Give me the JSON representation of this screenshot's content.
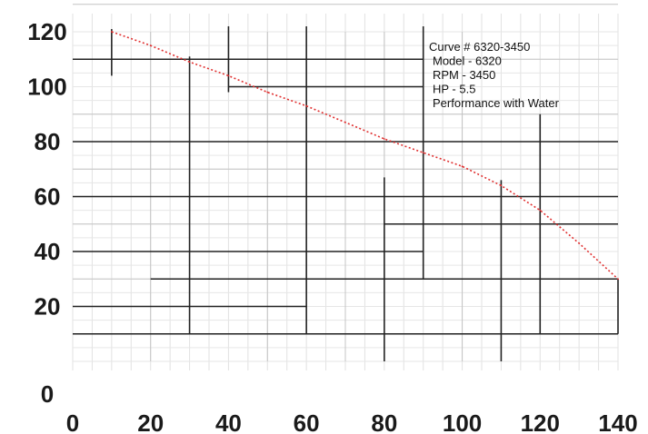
{
  "chart_data": {
    "type": "line",
    "title": "",
    "xlabel": "",
    "ylabel": "",
    "xlim": [
      0,
      140
    ],
    "ylim": [
      0,
      120
    ],
    "x_ticks": [
      "0",
      "20",
      "40",
      "60",
      "80",
      "100",
      "120",
      "140"
    ],
    "y_ticks": [
      "0",
      "20",
      "40",
      "60",
      "80",
      "100",
      "120"
    ],
    "grid": true,
    "series": [
      {
        "color": "#e03030",
        "style": "dotted",
        "points": [
          {
            "x": 10,
            "y": 120
          },
          {
            "x": 20,
            "y": 115
          },
          {
            "x": 30,
            "y": 109
          },
          {
            "x": 40,
            "y": 104
          },
          {
            "x": 50,
            "y": 98
          },
          {
            "x": 60,
            "y": 93
          },
          {
            "x": 70,
            "y": 87
          },
          {
            "x": 80,
            "y": 81
          },
          {
            "x": 90,
            "y": 76
          },
          {
            "x": 100,
            "y": 71
          },
          {
            "x": 110,
            "y": 64
          },
          {
            "x": 120,
            "y": 55
          },
          {
            "x": 130,
            "y": 43
          },
          {
            "x": 140,
            "y": 30
          }
        ]
      }
    ],
    "annotations": [
      "Curve # 6320-3450",
      "Model - 6320",
      "RPM - 3450",
      "HP - 5.5",
      "Performance with Water"
    ]
  }
}
